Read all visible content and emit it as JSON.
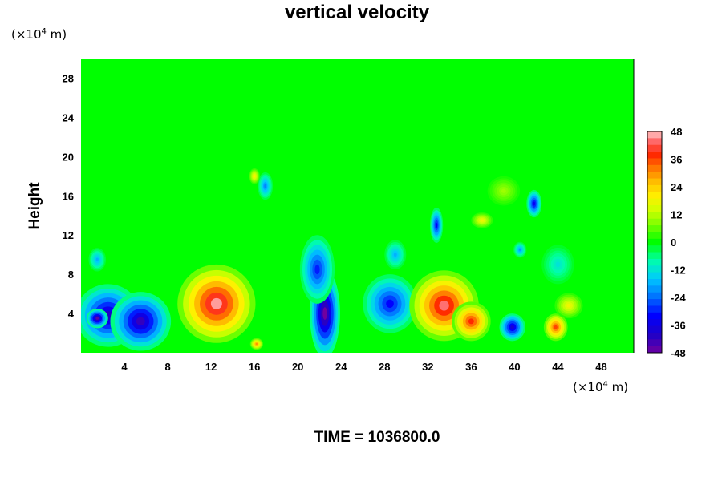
{
  "chart_data": {
    "type": "heatmap",
    "title": "vertical velocity",
    "ylabel": "Height",
    "x_unit": "(×10",
    "y_unit": "(×10",
    "unit_exponent": "4",
    "unit_suffix": " m)",
    "xlim": [
      0,
      51
    ],
    "ylim": [
      0,
      30
    ],
    "x_ticks": [
      "4",
      "8",
      "12",
      "16",
      "20",
      "24",
      "28",
      "32",
      "36",
      "40",
      "44",
      "48"
    ],
    "y_ticks": [
      "4",
      "8",
      "12",
      "16",
      "20",
      "24",
      "28"
    ],
    "colorbar_ticks": [
      "48",
      "36",
      "24",
      "12",
      "0",
      "-12",
      "-24",
      "-36",
      "-48"
    ],
    "colorbar_range": [
      -48,
      48
    ],
    "time_label": "TIME = 1036800.0",
    "colors": {
      "background": "#00ff00",
      "min": "#7000a0",
      "max": "#ffc8c8"
    },
    "features": [
      {
        "x": 2.5,
        "y": 3.8,
        "value": -40,
        "rx": 3.0,
        "ry": 3.2
      },
      {
        "x": 5.5,
        "y": 3.2,
        "value": -42,
        "rx": 2.8,
        "ry": 3.0
      },
      {
        "x": 1.5,
        "y": 3.5,
        "value": -46,
        "rx": 1.0,
        "ry": 1.0
      },
      {
        "x": 12.5,
        "y": 5.0,
        "value": 46,
        "rx": 3.6,
        "ry": 4.0
      },
      {
        "x": 16.2,
        "y": 0.9,
        "value": 30,
        "rx": 0.6,
        "ry": 0.6
      },
      {
        "x": 22.5,
        "y": 4.0,
        "value": -48,
        "rx": 1.4,
        "ry": 4.5
      },
      {
        "x": 21.8,
        "y": 8.5,
        "value": -30,
        "rx": 1.6,
        "ry": 3.5
      },
      {
        "x": 28.5,
        "y": 5.0,
        "value": -32,
        "rx": 2.5,
        "ry": 3.0
      },
      {
        "x": 33.5,
        "y": 4.8,
        "value": 44,
        "rx": 3.2,
        "ry": 3.6
      },
      {
        "x": 36.0,
        "y": 3.2,
        "value": 38,
        "rx": 1.8,
        "ry": 2.0
      },
      {
        "x": 39.8,
        "y": 2.6,
        "value": -38,
        "rx": 1.2,
        "ry": 1.4
      },
      {
        "x": 43.8,
        "y": 2.6,
        "value": 36,
        "rx": 1.1,
        "ry": 1.4
      },
      {
        "x": 45.0,
        "y": 4.8,
        "value": 18,
        "rx": 1.3,
        "ry": 1.3
      },
      {
        "x": 41.8,
        "y": 15.2,
        "value": -34,
        "rx": 0.7,
        "ry": 1.4
      },
      {
        "x": 32.8,
        "y": 13.0,
        "value": -32,
        "rx": 0.6,
        "ry": 1.8
      },
      {
        "x": 17.0,
        "y": 17.0,
        "value": -22,
        "rx": 0.7,
        "ry": 1.4
      },
      {
        "x": 16.0,
        "y": 18.0,
        "value": 20,
        "rx": 0.5,
        "ry": 0.8
      },
      {
        "x": 37.0,
        "y": 13.5,
        "value": 18,
        "rx": 1.0,
        "ry": 0.8
      },
      {
        "x": 39.0,
        "y": 16.5,
        "value": 10,
        "rx": 1.5,
        "ry": 1.5
      },
      {
        "x": 1.5,
        "y": 9.5,
        "value": -18,
        "rx": 0.8,
        "ry": 1.2
      },
      {
        "x": 29.0,
        "y": 10.0,
        "value": -18,
        "rx": 1.0,
        "ry": 1.5
      },
      {
        "x": 44.0,
        "y": 9.0,
        "value": -12,
        "rx": 1.5,
        "ry": 2.0
      },
      {
        "x": 40.5,
        "y": 10.5,
        "value": -20,
        "rx": 0.6,
        "ry": 0.8
      }
    ]
  }
}
